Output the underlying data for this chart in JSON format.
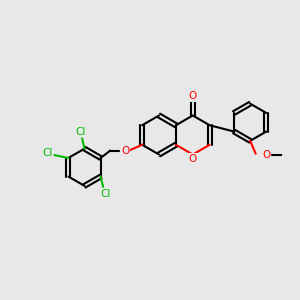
{
  "bg_color": "#e8e8e8",
  "bond_color": "#000000",
  "o_color": "#ff0000",
  "cl_color": "#00bb00",
  "lw": 1.5,
  "fs": 7.5,
  "figsize": [
    3.0,
    3.0
  ],
  "dpi": 100,
  "xlim": [
    0,
    10
  ],
  "ylim": [
    0,
    10
  ]
}
